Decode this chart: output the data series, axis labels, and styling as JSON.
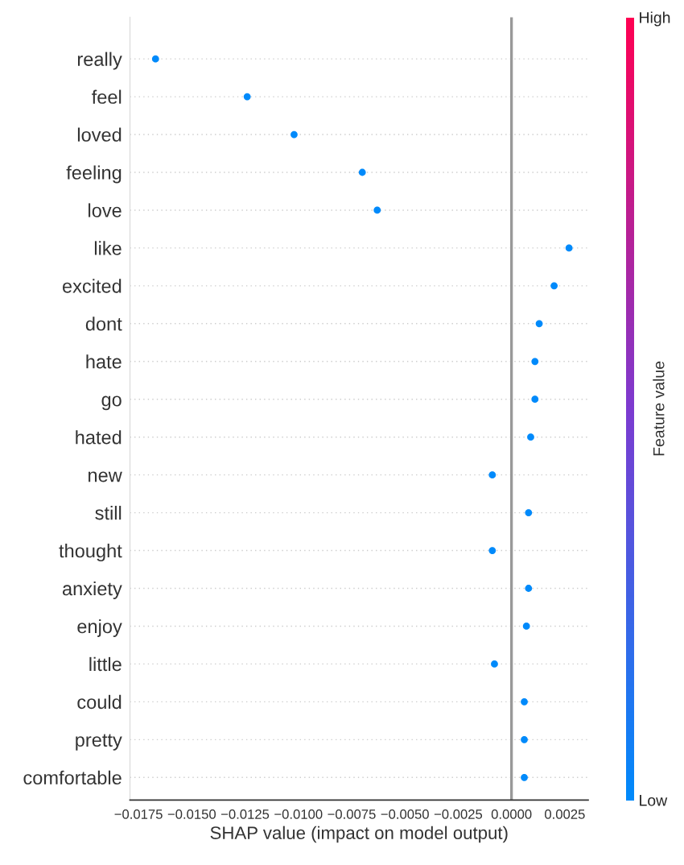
{
  "chart_data": {
    "type": "scatter",
    "xlabel": "SHAP value (impact on model output)",
    "clabel": "Feature value",
    "categories": [
      "really",
      "feel",
      "loved",
      "feeling",
      "love",
      "like",
      "excited",
      "dont",
      "hate",
      "go",
      "hated",
      "new",
      "still",
      "thought",
      "anxiety",
      "enjoy",
      "little",
      "could",
      "pretty",
      "comfortable"
    ],
    "orientation": "horizontal",
    "values": [
      -0.0167,
      -0.0124,
      -0.0102,
      -0.007,
      -0.0063,
      0.0027,
      0.002,
      0.0013,
      0.0011,
      0.0011,
      0.0009,
      -0.0009,
      0.0008,
      -0.0009,
      0.0008,
      0.0007,
      -0.0008,
      0.0006,
      0.0006,
      0.0006
    ],
    "cvalues": [
      0,
      0,
      0,
      0,
      0,
      0,
      0,
      0,
      0,
      0,
      0,
      0,
      0,
      0,
      0,
      0,
      0,
      0,
      0,
      0
    ],
    "clim": [
      0,
      1
    ],
    "cticks": [
      {
        "value": 0,
        "label": "Low"
      },
      {
        "value": 1,
        "label": "High"
      }
    ],
    "xlim": [
      -0.0179,
      0.0036
    ],
    "xticks": [
      {
        "value": -0.0175,
        "label": "−0.0175"
      },
      {
        "value": -0.015,
        "label": "−0.0150"
      },
      {
        "value": -0.0125,
        "label": "−0.0125"
      },
      {
        "value": -0.01,
        "label": "−0.0100"
      },
      {
        "value": -0.0075,
        "label": "−0.0075"
      },
      {
        "value": -0.005,
        "label": "−0.0050"
      },
      {
        "value": -0.0025,
        "label": "−0.0025"
      },
      {
        "value": 0,
        "label": "0.0000"
      },
      {
        "value": 0.0025,
        "label": "0.0025"
      }
    ],
    "ref_lines": [
      {
        "axis": "x",
        "value": 0,
        "color": "#999999"
      }
    ],
    "grid": "y",
    "marker": "circle"
  }
}
